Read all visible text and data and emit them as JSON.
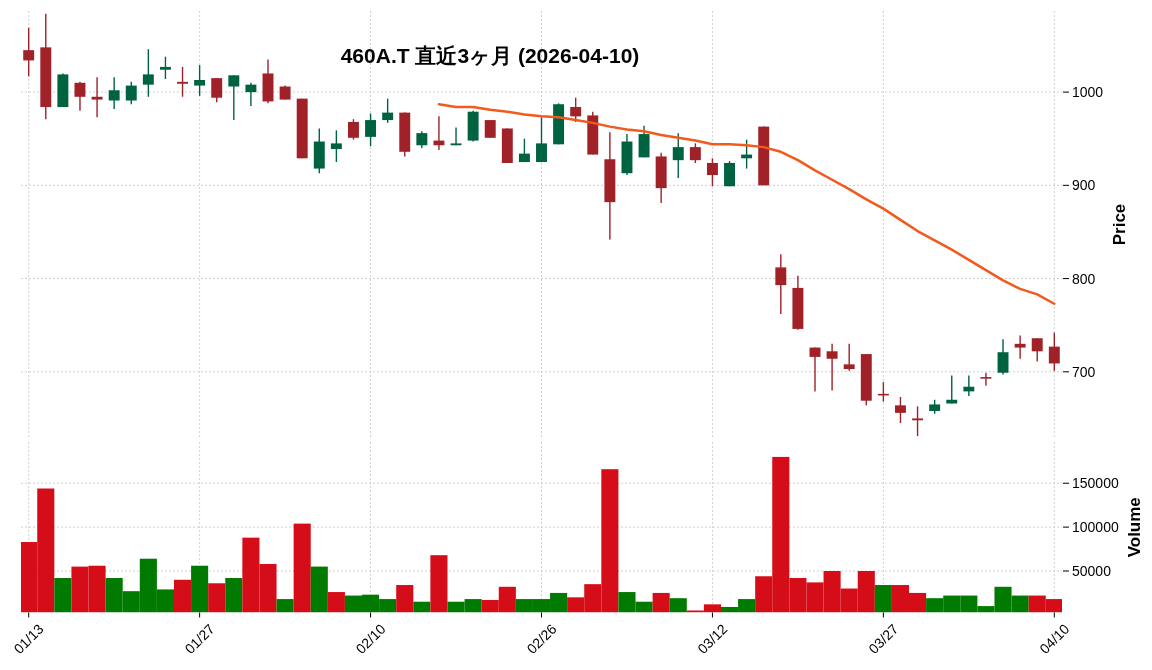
{
  "chart_data": [
    {
      "type": "candlestick",
      "title": "460A.T 直近3ヶ月 (2026-04-10)",
      "ylabel": "Price",
      "categories": [
        null,
        null,
        null,
        null,
        null,
        null,
        null,
        null,
        null,
        null,
        null,
        null,
        null,
        null,
        null,
        null,
        null,
        null,
        null,
        null,
        null,
        null,
        null,
        null,
        null,
        null,
        null,
        null,
        null,
        null,
        null,
        null,
        null,
        null,
        null,
        null,
        null,
        null,
        null,
        null,
        null,
        null,
        null,
        null,
        null,
        null,
        null,
        null,
        null,
        null,
        null,
        null,
        null,
        null,
        null,
        null,
        null,
        null,
        null,
        null,
        null
      ],
      "ohlc": [
        [
          1045,
          1069,
          1017,
          1034
        ],
        [
          1048,
          1084,
          971,
          984
        ],
        [
          984,
          1020,
          984,
          1019
        ],
        [
          1010,
          1011,
          980,
          995
        ],
        [
          995,
          1016,
          973,
          992
        ],
        [
          991,
          1016,
          982,
          1002
        ],
        [
          991,
          1011,
          987,
          1007
        ],
        [
          1008,
          1046,
          995,
          1019
        ],
        [
          1024,
          1038,
          1014,
          1027
        ],
        [
          1011,
          1027,
          995,
          1009
        ],
        [
          1007,
          1029,
          996,
          1013
        ],
        [
          1015,
          1015,
          989,
          994
        ],
        [
          1006,
          1018,
          970,
          1018
        ],
        [
          1000,
          1010,
          985,
          1008
        ],
        [
          1020,
          1035,
          988,
          990
        ],
        [
          1006,
          1007,
          992,
          992
        ],
        [
          993,
          993,
          929,
          929
        ],
        [
          918,
          961,
          913,
          947
        ],
        [
          939,
          959,
          925,
          945
        ],
        [
          968,
          971,
          949,
          951
        ],
        [
          952,
          977,
          942,
          970
        ],
        [
          970,
          993,
          967,
          978
        ],
        [
          978,
          978,
          931,
          936
        ],
        [
          943,
          958,
          940,
          956
        ],
        [
          948,
          974,
          938,
          943
        ],
        [
          943,
          962,
          943,
          945
        ],
        [
          948,
          980,
          947,
          979
        ],
        [
          970,
          970,
          951,
          951
        ],
        [
          961,
          961,
          924,
          924
        ],
        [
          925,
          950,
          925,
          934
        ],
        [
          925,
          973,
          925,
          945
        ],
        [
          944,
          988,
          944,
          987
        ],
        [
          984,
          994,
          968,
          974
        ],
        [
          975,
          979,
          933,
          933
        ],
        [
          928,
          957,
          842,
          882
        ],
        [
          913,
          955,
          911,
          947
        ],
        [
          930,
          964,
          930,
          955
        ],
        [
          931,
          935,
          881,
          897
        ],
        [
          927,
          956,
          908,
          941
        ],
        [
          941,
          945,
          924,
          927
        ],
        [
          924,
          929,
          899,
          911
        ],
        [
          899,
          926,
          899,
          924
        ],
        [
          929,
          949,
          918,
          933
        ],
        [
          963,
          963,
          900,
          900
        ],
        [
          812,
          826,
          762,
          793
        ],
        [
          790,
          803,
          745,
          746
        ],
        [
          726,
          726,
          679,
          716
        ],
        [
          722,
          730,
          680,
          714
        ],
        [
          708,
          730,
          701,
          703
        ],
        [
          719,
          719,
          664,
          669
        ],
        [
          676,
          689,
          668,
          675
        ],
        [
          664,
          673,
          645,
          656
        ],
        [
          650,
          663,
          631,
          648
        ],
        [
          658,
          670,
          655,
          665
        ],
        [
          666,
          696,
          666,
          670
        ],
        [
          679,
          696,
          674,
          684
        ],
        [
          694,
          699,
          685,
          693
        ],
        [
          699,
          735,
          697,
          721
        ],
        [
          730,
          739,
          714,
          726
        ],
        [
          736,
          736,
          711,
          722
        ],
        [
          727,
          742,
          701,
          709
        ]
      ],
      "colors": [
        "#a02128",
        "#a02128",
        "#006340",
        "#a02128",
        "#a02128",
        "#006340",
        "#006340",
        "#006340",
        "#006340",
        "#a02128",
        "#006340",
        "#a02128",
        "#006340",
        "#006340",
        "#a02128",
        "#a02128",
        "#a02128",
        "#006340",
        "#006340",
        "#a02128",
        "#006340",
        "#006340",
        "#a02128",
        "#006340",
        "#a02128",
        "#006340",
        "#006340",
        "#a02128",
        "#a02128",
        "#006340",
        "#006340",
        "#006340",
        "#a02128",
        "#a02128",
        "#a02128",
        "#006340",
        "#006340",
        "#a02128",
        "#006340",
        "#a02128",
        "#a02128",
        "#006340",
        "#006340",
        "#a02128",
        "#a02128",
        "#a02128",
        "#a02128",
        "#a02128",
        "#a02128",
        "#a02128",
        "#a02128",
        "#a02128",
        "#a02128",
        "#006340",
        "#006340",
        "#006340",
        "#a02128",
        "#006340",
        "#a02128",
        "#a02128",
        "#a02128"
      ],
      "series": [
        {
          "type": "line",
          "color": "#f15a1c",
          "values": [
            null,
            null,
            null,
            null,
            null,
            null,
            null,
            null,
            null,
            null,
            null,
            null,
            null,
            null,
            null,
            null,
            null,
            null,
            null,
            null,
            null,
            null,
            null,
            null,
            987,
            984,
            984,
            981,
            979,
            976,
            974,
            973,
            970,
            967,
            963,
            960,
            958,
            954,
            951,
            948,
            944,
            944,
            943,
            941,
            936,
            927,
            916,
            906,
            896,
            885,
            875,
            863,
            851,
            841,
            831,
            820,
            809,
            798,
            789,
            783,
            773
          ]
        }
      ],
      "ylim": [
        629,
        1087
      ],
      "yticks": [
        700,
        800,
        900,
        1000
      ],
      "grid": true,
      "tick_labels": "y"
    },
    {
      "type": "bar",
      "ylabel": "Volume",
      "categories": [
        "01/13",
        null,
        null,
        null,
        null,
        null,
        null,
        null,
        null,
        null,
        "01/27",
        null,
        null,
        null,
        null,
        null,
        null,
        null,
        null,
        null,
        "02/10",
        null,
        null,
        null,
        null,
        null,
        null,
        null,
        null,
        null,
        "02/26",
        null,
        null,
        null,
        null,
        null,
        null,
        null,
        null,
        null,
        "03/12",
        null,
        null,
        null,
        null,
        null,
        null,
        null,
        null,
        null,
        "03/27",
        null,
        null,
        null,
        null,
        null,
        null,
        null,
        null,
        null,
        "04/10"
      ],
      "values": [
        83000,
        144000,
        42000,
        55000,
        56000,
        42000,
        27000,
        64000,
        29000,
        40000,
        56000,
        36000,
        42000,
        88000,
        58000,
        18000,
        104000,
        55000,
        26000,
        22000,
        23000,
        18000,
        34000,
        15000,
        68000,
        15000,
        18000,
        17000,
        32000,
        18000,
        18000,
        25000,
        20000,
        35000,
        166000,
        26000,
        15000,
        25000,
        19000,
        5000,
        12000,
        9000,
        18000,
        44000,
        180000,
        42000,
        37000,
        50000,
        30000,
        50000,
        34000,
        34000,
        25000,
        19000,
        22000,
        22000,
        10000,
        32000,
        22000,
        22000,
        18000
      ],
      "colors": [
        "#d50d18",
        "#d50d18",
        "#007a00",
        "#d50d18",
        "#d50d18",
        "#007a00",
        "#007a00",
        "#007a00",
        "#007a00",
        "#d50d18",
        "#007a00",
        "#d50d18",
        "#007a00",
        "#d50d18",
        "#d50d18",
        "#007a00",
        "#d50d18",
        "#007a00",
        "#d50d18",
        "#007a00",
        "#007a00",
        "#007a00",
        "#d50d18",
        "#007a00",
        "#d50d18",
        "#007a00",
        "#007a00",
        "#d50d18",
        "#d50d18",
        "#007a00",
        "#007a00",
        "#007a00",
        "#d50d18",
        "#d50d18",
        "#d50d18",
        "#007a00",
        "#007a00",
        "#d50d18",
        "#007a00",
        "#d50d18",
        "#d50d18",
        "#007a00",
        "#007a00",
        "#d50d18",
        "#d50d18",
        "#d50d18",
        "#d50d18",
        "#d50d18",
        "#d50d18",
        "#d50d18",
        "#007a00",
        "#d50d18",
        "#d50d18",
        "#007a00",
        "#007a00",
        "#007a00",
        "#007a00",
        "#007a00",
        "#007a00",
        "#d50d18",
        "#d50d18"
      ],
      "ylim": [
        2700,
        197000
      ],
      "yticks": [
        50000,
        100000,
        150000
      ],
      "grid": true
    }
  ]
}
